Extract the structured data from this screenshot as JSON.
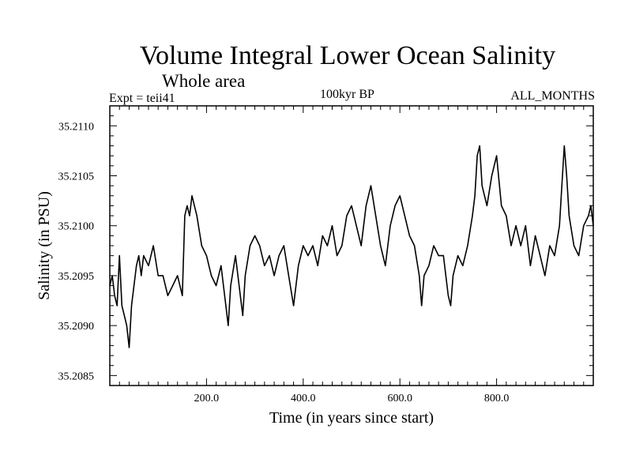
{
  "header": {
    "title": "Volume Integral Lower Ocean Salinity",
    "subtitle": "Whole area",
    "experiment": "Expt = teii41",
    "period": "100kyr BP",
    "months": "ALL_MONTHS"
  },
  "chart_data": {
    "type": "line",
    "title": "Volume Integral Lower Ocean Salinity",
    "xlabel": "Time (in years since start)",
    "ylabel": "Salinity (in PSU)",
    "xlim": [
      0,
      1000
    ],
    "ylim": [
      35.2084,
      35.2112
    ],
    "x_ticks": [
      200,
      400,
      600,
      800
    ],
    "x_tick_labels": [
      "200.0",
      "400.0",
      "600.0",
      "800.0"
    ],
    "y_ticks": [
      35.2085,
      35.209,
      35.2095,
      35.21,
      35.2105,
      35.211
    ],
    "y_tick_labels": [
      "35.2085",
      "35.2090",
      "35.2095",
      "35.2100",
      "35.2105",
      "35.2110"
    ],
    "grid": false,
    "series": [
      {
        "x": [
          0,
          5,
          10,
          15,
          20,
          25,
          30,
          35,
          40,
          45,
          50,
          55,
          60,
          65,
          70,
          80,
          90,
          100,
          110,
          120,
          130,
          140,
          150,
          155,
          160,
          165,
          170,
          175,
          180,
          190,
          200,
          210,
          220,
          230,
          240,
          245,
          250,
          260,
          270,
          275,
          280,
          290,
          300,
          310,
          320,
          330,
          340,
          350,
          360,
          370,
          380,
          390,
          400,
          410,
          420,
          430,
          440,
          450,
          460,
          470,
          480,
          490,
          500,
          510,
          520,
          530,
          540,
          550,
          560,
          570,
          580,
          590,
          600,
          610,
          620,
          630,
          640,
          645,
          650,
          660,
          670,
          680,
          690,
          700,
          705,
          710,
          720,
          730,
          740,
          750,
          755,
          760,
          765,
          770,
          780,
          790,
          800,
          810,
          820,
          830,
          840,
          850,
          860,
          870,
          880,
          890,
          900,
          910,
          920,
          930,
          935,
          940,
          945,
          950,
          960,
          970,
          980,
          990,
          995,
          1000
        ],
        "y": [
          35.2094,
          35.2095,
          35.2093,
          35.2092,
          35.2097,
          35.2092,
          35.2091,
          35.209,
          35.20878,
          35.2092,
          35.2094,
          35.2096,
          35.2097,
          35.2095,
          35.2097,
          35.2096,
          35.2098,
          35.2095,
          35.2095,
          35.2093,
          35.2094,
          35.2095,
          35.2093,
          35.2101,
          35.2102,
          35.2101,
          35.2103,
          35.2102,
          35.2101,
          35.2098,
          35.2097,
          35.2095,
          35.2094,
          35.2096,
          35.2092,
          35.209,
          35.2094,
          35.2097,
          35.2093,
          35.2091,
          35.2095,
          35.2098,
          35.2099,
          35.2098,
          35.2096,
          35.2097,
          35.2095,
          35.2097,
          35.2098,
          35.2095,
          35.2092,
          35.2096,
          35.2098,
          35.2097,
          35.2098,
          35.2096,
          35.2099,
          35.2098,
          35.21,
          35.2097,
          35.2098,
          35.2101,
          35.2102,
          35.21,
          35.2098,
          35.2102,
          35.2104,
          35.2101,
          35.2098,
          35.2096,
          35.21,
          35.2102,
          35.2103,
          35.2101,
          35.2099,
          35.2098,
          35.2095,
          35.2092,
          35.2095,
          35.2096,
          35.2098,
          35.2097,
          35.2097,
          35.2093,
          35.2092,
          35.2095,
          35.2097,
          35.2096,
          35.2098,
          35.2101,
          35.2103,
          35.2107,
          35.2108,
          35.2104,
          35.2102,
          35.2105,
          35.2107,
          35.2102,
          35.2101,
          35.2098,
          35.21,
          35.2098,
          35.21,
          35.2096,
          35.2099,
          35.2097,
          35.2095,
          35.2098,
          35.2097,
          35.21,
          35.2104,
          35.2108,
          35.2105,
          35.2101,
          35.2098,
          35.2097,
          35.21,
          35.2101,
          35.2102,
          35.21
        ]
      }
    ]
  }
}
